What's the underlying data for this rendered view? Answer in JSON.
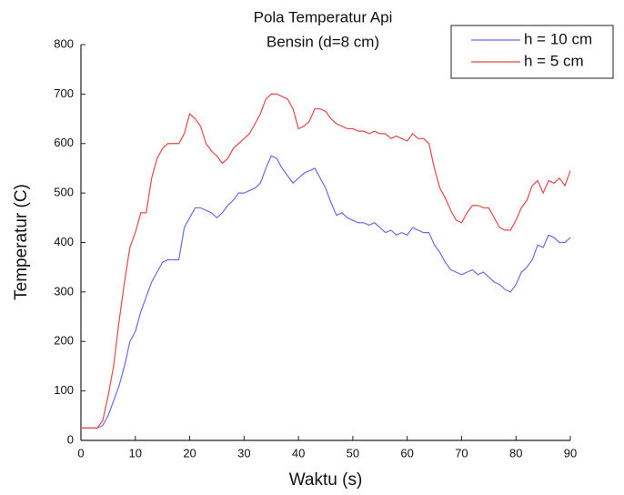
{
  "chart_data": {
    "type": "line",
    "title": "Pola Temperatur Api",
    "subtitle": "Bensin (d=8 cm)",
    "x_label": "Waktu (s)",
    "y_label": "Temperatur (C)",
    "x": [
      0,
      1,
      2,
      3,
      4,
      5,
      6,
      7,
      8,
      9,
      10,
      11,
      12,
      13,
      14,
      15,
      16,
      17,
      18,
      19,
      20,
      21,
      22,
      23,
      24,
      25,
      26,
      27,
      28,
      29,
      30,
      31,
      32,
      33,
      34,
      35,
      36,
      37,
      38,
      39,
      40,
      41,
      42,
      43,
      44,
      45,
      46,
      47,
      48,
      49,
      50,
      51,
      52,
      53,
      54,
      55,
      56,
      57,
      58,
      59,
      60,
      61,
      62,
      63,
      64,
      65,
      66,
      67,
      68,
      69,
      70,
      71,
      72,
      73,
      74,
      75,
      76,
      77,
      78,
      79,
      80,
      81,
      82,
      83,
      84,
      85,
      86,
      87,
      88,
      89,
      90
    ],
    "series": [
      {
        "name": "h = 10 cm",
        "color": "#6b6bf0",
        "values": [
          25,
          25,
          25,
          25,
          30,
          50,
          80,
          110,
          150,
          200,
          220,
          260,
          290,
          320,
          340,
          360,
          365,
          365,
          365,
          430,
          450,
          470,
          470,
          465,
          460,
          450,
          460,
          475,
          485,
          500,
          500,
          505,
          510,
          520,
          550,
          575,
          570,
          550,
          535,
          520,
          530,
          540,
          545,
          550,
          530,
          510,
          480,
          455,
          460,
          450,
          445,
          440,
          440,
          435,
          440,
          430,
          420,
          425,
          415,
          420,
          415,
          430,
          425,
          420,
          420,
          395,
          380,
          360,
          345,
          340,
          335,
          340,
          345,
          335,
          340,
          330,
          320,
          315,
          305,
          300,
          315,
          340,
          350,
          365,
          395,
          390,
          415,
          410,
          400,
          400,
          410
        ]
      },
      {
        "name": "h = 5 cm",
        "color": "#e84848",
        "values": [
          25,
          25,
          25,
          25,
          40,
          90,
          150,
          240,
          320,
          390,
          420,
          460,
          460,
          530,
          570,
          590,
          600,
          600,
          600,
          620,
          660,
          650,
          635,
          600,
          585,
          575,
          560,
          570,
          590,
          600,
          610,
          620,
          640,
          660,
          690,
          700,
          700,
          695,
          690,
          670,
          630,
          635,
          645,
          670,
          670,
          665,
          650,
          640,
          635,
          630,
          630,
          625,
          625,
          620,
          625,
          620,
          620,
          610,
          615,
          610,
          605,
          620,
          610,
          610,
          600,
          550,
          510,
          490,
          465,
          445,
          440,
          460,
          475,
          475,
          470,
          470,
          450,
          430,
          425,
          425,
          445,
          470,
          485,
          515,
          525,
          500,
          525,
          520,
          530,
          515,
          545
        ]
      }
    ],
    "xlim": [
      0,
      90
    ],
    "xticks": [
      0,
      10,
      20,
      30,
      40,
      50,
      60,
      70,
      80,
      90
    ],
    "ylim": [
      0,
      800
    ],
    "yticks": [
      0,
      100,
      200,
      300,
      400,
      500,
      600,
      700,
      800
    ],
    "legend": "top-right",
    "grid": false
  }
}
